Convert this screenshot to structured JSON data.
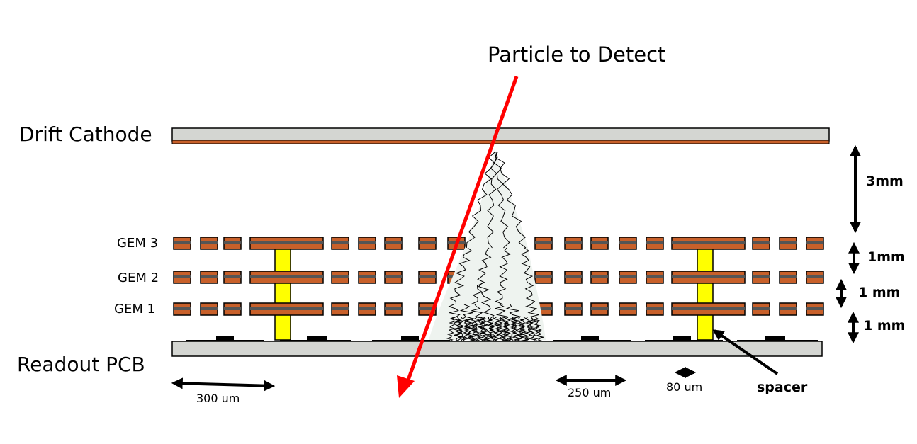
{
  "title": "Particle to Detect",
  "labels": {
    "drift_cathode": "Drift Cathode",
    "readout_pcb": "Readout PCB",
    "gem3": "GEM 3",
    "gem2": "GEM 2",
    "gem1": "GEM 1",
    "spacer": "spacer"
  },
  "dimensions": {
    "gap_drift": "3mm",
    "gap_gem3_gem2": "1mm",
    "gap_gem2_gem1": "1 mm",
    "gap_gem1_pcb": "1 mm",
    "pitch_300": "300 um",
    "pitch_250": "250 um",
    "width_80": "80 um"
  },
  "colors": {
    "copper": "#c8602a",
    "board": "#d4d6d2",
    "spacer": "#ffff00",
    "track": "#ff0000",
    "outline": "#000000"
  }
}
